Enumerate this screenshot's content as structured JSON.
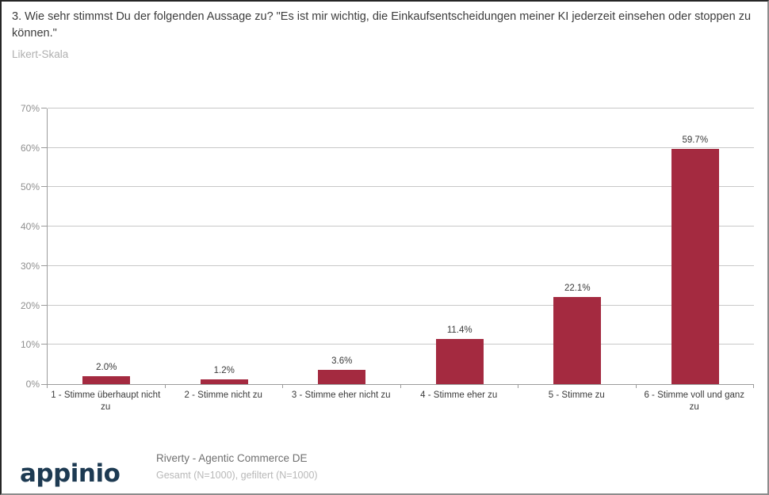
{
  "header": {
    "title": "3. Wie sehr stimmst Du der folgenden Aussage zu? \"Es ist mir wichtig, die Einkaufsentscheidungen meiner KI jederzeit einsehen oder stoppen zu können.\"",
    "subtitle": "Likert-Skala"
  },
  "chart_data": {
    "type": "bar",
    "categories": [
      "1 - Stimme überhaupt nicht zu",
      "2 - Stimme nicht zu",
      "3 - Stimme eher nicht zu",
      "4 - Stimme eher zu",
      "5 - Stimme zu",
      "6 - Stimme voll und ganz zu"
    ],
    "values": [
      2.0,
      1.2,
      3.6,
      11.4,
      22.1,
      59.7
    ],
    "value_labels": [
      "2.0%",
      "1.2%",
      "3.6%",
      "11.4%",
      "22.1%",
      "59.7%"
    ],
    "title": "",
    "xlabel": "",
    "ylabel": "",
    "ylim": [
      0,
      70
    ],
    "ytick_step": 10,
    "ytick_labels": [
      "0%",
      "10%",
      "20%",
      "30%",
      "40%",
      "50%",
      "60%",
      "70%"
    ],
    "grid": true,
    "legend": false,
    "bar_color": "#a42a40"
  },
  "footer": {
    "logo_text": "appinio",
    "survey_name": "Riverty - Agentic Commerce DE",
    "sample_info": "Gesamt (N=1000), gefiltert (N=1000)"
  },
  "colors": {
    "bar": "#a42a40",
    "logo": "#1d3a52",
    "title_text": "#3c3c3c",
    "subtitle_text": "#b0b0b0",
    "axis_label_text": "#8f8f8f",
    "category_text": "#3a3a3a",
    "gridline": "#c8c8c8",
    "axis_line": "#9b9b9b"
  }
}
